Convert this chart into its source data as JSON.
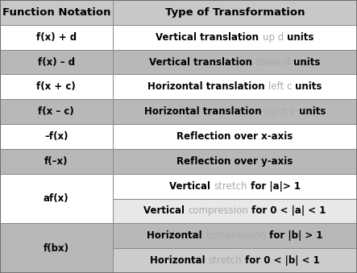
{
  "header": [
    "Function Notation",
    "Type of Transformation"
  ],
  "header_bg": "#c8c8c8",
  "header_fg": "#000000",
  "col_split": 0.315,
  "font_size": 8.5,
  "header_font_size": 9.5,
  "row_bg_white": "#ffffff",
  "row_bg_gray": "#b8b8b8",
  "sub_bg_white2": "#e8e8e8",
  "sub_bg_gray2": "#cccccc",
  "border_color": "#888888",
  "faded_color": "#aaaaaa",
  "rows": [
    {
      "left": "f(x) + d",
      "right_parts": [
        {
          "text": "Vertical translation ",
          "bold": true,
          "faded": false
        },
        {
          "text": "up d",
          "bold": false,
          "faded": true
        },
        {
          "text": " units",
          "bold": true,
          "faded": false
        }
      ],
      "bg": "white",
      "span": 1
    },
    {
      "left": "f(x) – d",
      "right_parts": [
        {
          "text": "Vertical translation ",
          "bold": true,
          "faded": false
        },
        {
          "text": "down d",
          "bold": false,
          "faded": true
        },
        {
          "text": " units",
          "bold": true,
          "faded": false
        }
      ],
      "bg": "gray",
      "span": 1
    },
    {
      "left": "f(x + c)",
      "right_parts": [
        {
          "text": "Horizontal translation ",
          "bold": true,
          "faded": false
        },
        {
          "text": "left c",
          "bold": false,
          "faded": true
        },
        {
          "text": " units",
          "bold": true,
          "faded": false
        }
      ],
      "bg": "white",
      "span": 1
    },
    {
      "left": "f(x – c)",
      "right_parts": [
        {
          "text": "Horizontal translation ",
          "bold": true,
          "faded": false
        },
        {
          "text": "right c",
          "bold": false,
          "faded": true
        },
        {
          "text": " units",
          "bold": true,
          "faded": false
        }
      ],
      "bg": "gray",
      "span": 1
    },
    {
      "left": "–f(x)",
      "right_parts": [
        {
          "text": "Reflection over x-axis",
          "bold": true,
          "faded": false
        }
      ],
      "bg": "white",
      "span": 1
    },
    {
      "left": "f(–x)",
      "right_parts": [
        {
          "text": "Reflection over y-axis",
          "bold": true,
          "faded": false
        }
      ],
      "bg": "gray",
      "span": 1
    },
    {
      "left": "af(x)",
      "right_rows": [
        [
          {
            "text": "Vertical ",
            "bold": true,
            "faded": false
          },
          {
            "text": "stretch",
            "bold": false,
            "faded": true
          },
          {
            "text": " for |a|> 1",
            "bold": true,
            "faded": false
          }
        ],
        [
          {
            "text": "Vertical ",
            "bold": true,
            "faded": false
          },
          {
            "text": "compression",
            "bold": false,
            "faded": true
          },
          {
            "text": " for 0 < |a| < 1",
            "bold": true,
            "faded": false
          }
        ]
      ],
      "bg": "white",
      "span": 2
    },
    {
      "left": "f(bx)",
      "right_rows": [
        [
          {
            "text": "Horizontal ",
            "bold": true,
            "faded": false
          },
          {
            "text": "compression",
            "bold": false,
            "faded": true
          },
          {
            "text": " for |b| > 1",
            "bold": true,
            "faded": false
          }
        ],
        [
          {
            "text": "Horizontal ",
            "bold": true,
            "faded": false
          },
          {
            "text": "stretch",
            "bold": false,
            "faded": true
          },
          {
            "text": " for 0 < |b| < 1",
            "bold": true,
            "faded": false
          }
        ]
      ],
      "bg": "gray",
      "span": 2
    }
  ]
}
